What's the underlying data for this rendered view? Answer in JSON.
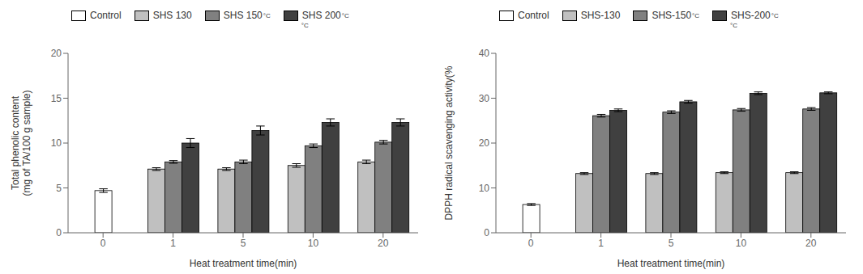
{
  "chart_data": [
    {
      "type": "bar",
      "x_label": "Heat treatment time(min)",
      "y_label": "Total phenolic content\n(mg of TA/100 g sample)",
      "categories": [
        "0",
        "1",
        "5",
        "10",
        "20"
      ],
      "ylim": [
        0,
        20
      ],
      "yticks": [
        0,
        5,
        10,
        15,
        20
      ],
      "grid": false,
      "legend": "upper left",
      "series": [
        {
          "name": "Control",
          "color": "#ffffff",
          "values": [
            4.7,
            null,
            null,
            null,
            null
          ],
          "errors": [
            0.2,
            null,
            null,
            null,
            null
          ]
        },
        {
          "name": "SHS 130",
          "color": "#c0c0c0",
          "values": [
            null,
            7.1,
            7.1,
            7.5,
            7.9
          ],
          "errors": [
            null,
            0.15,
            0.15,
            0.2,
            0.2
          ]
        },
        {
          "name": "SHS 150",
          "color": "#808080",
          "values": [
            null,
            7.9,
            7.9,
            9.7,
            10.1
          ],
          "errors": [
            null,
            0.15,
            0.2,
            0.2,
            0.2
          ]
        },
        {
          "name": "SHS 200",
          "color": "#404040",
          "values": [
            null,
            10.0,
            11.4,
            12.3,
            12.3
          ],
          "errors": [
            null,
            0.5,
            0.5,
            0.4,
            0.4
          ]
        }
      ],
      "annotations": [
        {
          "text": "°C",
          "series": "SHS 150"
        },
        {
          "text": "°C",
          "series": "SHS 200"
        },
        {
          "text": "°C",
          "series": "SHS 200",
          "below": true
        }
      ]
    },
    {
      "type": "bar",
      "x_label": "Heat treatment time(min)",
      "y_label": "DPPH radical scavenging activity(%",
      "categories": [
        "0",
        "1",
        "5",
        "10",
        "20"
      ],
      "ylim": [
        0,
        40
      ],
      "yticks": [
        0,
        10,
        20,
        30,
        40
      ],
      "grid": false,
      "legend": "upper left",
      "series": [
        {
          "name": "Control",
          "color": "#ffffff",
          "values": [
            6.3,
            null,
            null,
            null,
            null
          ],
          "errors": [
            0.2,
            null,
            null,
            null,
            null
          ]
        },
        {
          "name": "SHS-130",
          "color": "#c0c0c0",
          "values": [
            null,
            13.2,
            13.2,
            13.4,
            13.4
          ],
          "errors": [
            null,
            0.2,
            0.2,
            0.2,
            0.2
          ]
        },
        {
          "name": "SHS-150",
          "color": "#808080",
          "values": [
            null,
            26.1,
            26.9,
            27.4,
            27.6
          ],
          "errors": [
            null,
            0.3,
            0.3,
            0.3,
            0.3
          ]
        },
        {
          "name": "SHS-200",
          "color": "#404040",
          "values": [
            null,
            27.3,
            29.2,
            31.1,
            31.2
          ],
          "errors": [
            null,
            0.3,
            0.3,
            0.3,
            0.2
          ]
        }
      ],
      "annotations": [
        {
          "text": "°C",
          "series": "SHS-150"
        },
        {
          "text": "°C",
          "series": "SHS-200"
        },
        {
          "text": "°C",
          "series": "SHS-200",
          "below": true
        }
      ]
    }
  ]
}
